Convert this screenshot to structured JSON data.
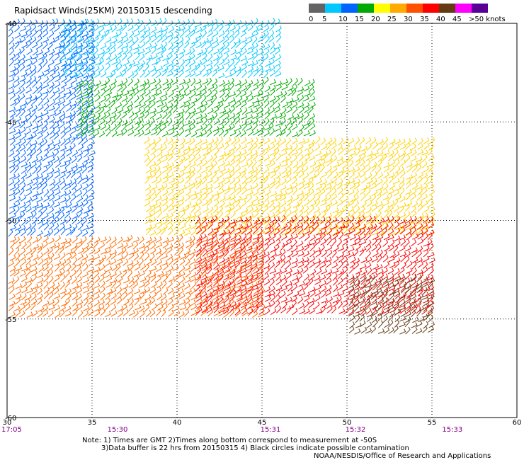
{
  "chart_data": {
    "type": "scatter",
    "title": "Rapidsact Winds(25KM) 20150315 descending",
    "x_ticks": [
      "30",
      "35",
      "40",
      "45",
      "50",
      "55",
      "60"
    ],
    "y_ticks": [
      "-40",
      "-45",
      "-50",
      "-55",
      "-60"
    ],
    "xlim": [
      30,
      60
    ],
    "ylim": [
      -60,
      -40
    ],
    "grid": true,
    "time_labels": [
      {
        "x": 30,
        "label": "17:05"
      },
      {
        "x": 36.5,
        "label": "15:30"
      },
      {
        "x": 45.5,
        "label": "15:31"
      },
      {
        "x": 50.5,
        "label": "15:32"
      },
      {
        "x": 56.2,
        "label": "15:33"
      }
    ],
    "colorbar": {
      "labels": [
        "0",
        "5",
        "10",
        "15",
        "20",
        "25",
        "30",
        "35",
        "40",
        "45",
        ">50 knots"
      ],
      "colors": [
        "#646464",
        "#00c8ff",
        "#0064ff",
        "#00aa00",
        "#ffff00",
        "#ffaa00",
        "#ff5000",
        "#ff0000",
        "#643c14",
        "#ff00ff",
        "#5a0096"
      ]
    },
    "wind_regions": [
      {
        "speed_band": "10-15 kt",
        "color": "#00c8ff",
        "lon": [
          33,
          46
        ],
        "lat": [
          -43,
          -40
        ]
      },
      {
        "speed_band": "10-15 kt",
        "color": "#0064ff",
        "lon": [
          30,
          35
        ],
        "lat": [
          -51,
          -40
        ]
      },
      {
        "speed_band": "15-20 kt",
        "color": "#00aa00",
        "lon": [
          34,
          48
        ],
        "lat": [
          -46,
          -43
        ]
      },
      {
        "speed_band": "20-25 kt",
        "color": "#ffd000",
        "lon": [
          38,
          55
        ],
        "lat": [
          -51,
          -46
        ]
      },
      {
        "speed_band": "25-35 kt",
        "color": "#ff6a00",
        "lon": [
          30,
          45
        ],
        "lat": [
          -55,
          -51
        ]
      },
      {
        "speed_band": "35-40 kt",
        "color": "#ff0000",
        "lon": [
          41,
          55
        ],
        "lat": [
          -55,
          -50
        ]
      },
      {
        "speed_band": "40-45 kt",
        "color": "#643c14",
        "lon": [
          50,
          55
        ],
        "lat": [
          -56,
          -53
        ]
      }
    ]
  },
  "notes": [
    "Note: 1) Times are GMT 2)Times along bottom correspond to measurement at -50S",
    "3)Data buffer is 22 hrs from 20150315 4) Black circles indicate possible contamination",
    "NOAA/NESDIS/Office of Research and Applications"
  ]
}
